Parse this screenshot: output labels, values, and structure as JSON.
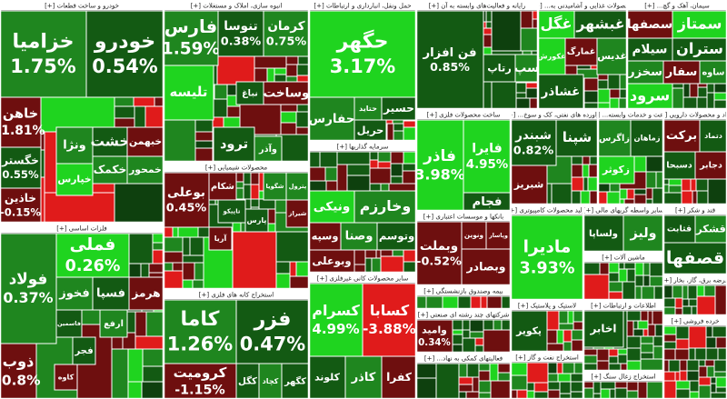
{
  "sectors": [
    {
      "title": "خودرو و ساخت قطعات [+]",
      "tiles": [
        {
          "name": "خزامیا",
          "change": "1.75%"
        },
        {
          "name": "خودرو",
          "change": "0.54%"
        },
        {
          "name": "خاهن",
          "change": "-1.81%"
        },
        {
          "name": "خگستر",
          "change": "0.55%"
        },
        {
          "name": "خاذین",
          "change": "-0.15%"
        },
        {
          "name": "ونژا"
        },
        {
          "name": "خشت"
        },
        {
          "name": "خبهمن"
        },
        {
          "name": "خمحور"
        },
        {
          "name": "خکمک"
        },
        {
          "name": "خپارس"
        }
      ]
    },
    {
      "title": "فلزات اساسی [+]",
      "tiles": [
        {
          "name": "فولاد",
          "change": "0.37%"
        },
        {
          "name": "فملی",
          "change": "0.26%"
        },
        {
          "name": "ذوب",
          "change": "-0.8%"
        },
        {
          "name": "فخوز"
        },
        {
          "name": "هرمز"
        },
        {
          "name": "فسپا"
        },
        {
          "name": "فاسمین"
        },
        {
          "name": "فجر"
        },
        {
          "name": "کاوه"
        },
        {
          "name": "ارفع"
        }
      ]
    },
    {
      "title": "انبوه سازی، املاک و مستغلات [+]",
      "tiles": [
        {
          "name": "فارس",
          "change": "1.59%"
        },
        {
          "name": "تنوسا",
          "change": "0.38%"
        },
        {
          "name": "کرمان",
          "change": "0.75%"
        },
        {
          "name": "وساخت"
        },
        {
          "name": "نباغ"
        },
        {
          "name": "تلیسه"
        },
        {
          "name": "ترود"
        },
        {
          "name": "وآذر"
        }
      ]
    },
    {
      "title": "محصولات شیمیایی [+]",
      "tiles": [
        {
          "name": "بوعلی",
          "change": "0.45%"
        },
        {
          "name": "شکام"
        },
        {
          "name": "شگویا"
        },
        {
          "name": "پترول"
        },
        {
          "name": "تاپیکو"
        },
        {
          "name": "پارس"
        },
        {
          "name": "آریا"
        },
        {
          "name": "شیراز"
        }
      ]
    },
    {
      "title": "استخراج کانه های فلزی [+]",
      "tiles": [
        {
          "name": "کاما",
          "change": "1.26%"
        },
        {
          "name": "فزر",
          "change": "0.47%"
        },
        {
          "name": "کرومیت",
          "change": "-1.15%"
        },
        {
          "name": "کگل"
        },
        {
          "name": "کچاد"
        },
        {
          "name": "کگهر"
        }
      ]
    },
    {
      "title": "حمل ونقل، انبارداری و ارتباطات [+]",
      "tiles": [
        {
          "name": "حگهر",
          "change": "3.17%"
        },
        {
          "name": "حسیر"
        },
        {
          "name": "حتاید"
        },
        {
          "name": "حفارس"
        },
        {
          "name": "حریل"
        }
      ]
    },
    {
      "title": "سرمایه گذاریها [+]",
      "tiles": [
        {
          "name": "وخارزم"
        },
        {
          "name": "ونیکی"
        },
        {
          "name": "وسپه"
        },
        {
          "name": "وصنا"
        },
        {
          "name": "وتوسم"
        },
        {
          "name": "وبوعلی"
        }
      ]
    },
    {
      "title": "سایر محصولات کانی غیرفلزی [+]",
      "tiles": [
        {
          "name": "کسرام",
          "change": "4.99%"
        },
        {
          "name": "کسابا",
          "change": "-3.88%"
        },
        {
          "name": "کلوند"
        },
        {
          "name": "کاذر"
        },
        {
          "name": "کفرا"
        }
      ]
    },
    {
      "title": "رایانه و فعالیت‌های وابسته به آن [+]",
      "tiles": [
        {
          "name": "فن افزار",
          "change": "0.85%"
        },
        {
          "name": "رتاپ"
        },
        {
          "name": "سپ"
        }
      ]
    },
    {
      "title": "ساخت محصولات فلزی [+]",
      "tiles": [
        {
          "name": "فاذر",
          "change": "3.98%"
        },
        {
          "name": "فایرا",
          "change": "4.95%"
        },
        {
          "name": "فجام"
        }
      ]
    },
    {
      "title": "بانکها و موسسات اعتباری [+]",
      "tiles": [
        {
          "name": "وبملت",
          "change": "-0.52%"
        },
        {
          "name": "ونوین"
        },
        {
          "name": "وپاسار"
        },
        {
          "name": "وبصادر"
        }
      ]
    },
    {
      "title": "بیمه وصندوق بازنشستگی [+]",
      "tiles": []
    },
    {
      "title": "شرکتهای چند رشته ای صنعتی [+]",
      "tiles": [
        {
          "name": "وامید",
          "change": "0.34%"
        }
      ]
    },
    {
      "title": "فعالیتهای کمکی به نهاد... [+]",
      "tiles": []
    },
    {
      "title": "فراورده های نفتی، کک و سوخ... [+]",
      "tiles": [
        {
          "name": "شبندر",
          "change": "0.82%"
        },
        {
          "name": "شپنا"
        },
        {
          "name": "شبریز"
        }
      ]
    },
    {
      "title": "محصولات غذایی و آشامیدنی به... [+]",
      "tiles": [
        {
          "name": "غگل"
        },
        {
          "name": "غبشهر"
        },
        {
          "name": "غکورش"
        },
        {
          "name": "غمارگ"
        },
        {
          "name": "غدیس"
        },
        {
          "name": "غشاذر"
        }
      ]
    },
    {
      "title": "سیمان، آهک و گچ... [+]",
      "tiles": [
        {
          "name": "سصفها"
        },
        {
          "name": "سمتاز"
        },
        {
          "name": "سیلام"
        },
        {
          "name": "ستران"
        },
        {
          "name": "سخزر"
        },
        {
          "name": "سفار"
        },
        {
          "name": "ساوه"
        },
        {
          "name": "سرود"
        }
      ]
    },
    {
      "title": "زراعت و خدمات وابسته... [+]",
      "tiles": [
        {
          "name": "زاگرس"
        },
        {
          "name": "زماهان"
        },
        {
          "name": "زکوثر"
        }
      ]
    },
    {
      "title": "مواد و محصولات دارویی [+]",
      "tiles": [
        {
          "name": "برکت"
        },
        {
          "name": "دتماد"
        },
        {
          "name": "دسبحا"
        },
        {
          "name": "دجابر"
        }
      ]
    },
    {
      "title": "تولید محصولات کامپیوتری [+]",
      "tiles": [
        {
          "name": "ماديرا",
          "change": "3.93%"
        }
      ]
    },
    {
      "title": "سایر واسطه گریهای مالی [+]",
      "tiles": [
        {
          "name": "ولساپا"
        },
        {
          "name": "ولیز"
        }
      ]
    },
    {
      "title": "قند و شکر [+]",
      "tiles": [
        {
          "name": "قثابت"
        },
        {
          "name": "قشکر"
        },
        {
          "name": "قصفها"
        }
      ]
    },
    {
      "title": "ماشین آلات [+]",
      "tiles": []
    },
    {
      "title": "عرضه برق، گاز، بخار [+]",
      "tiles": []
    },
    {
      "title": "لاستیک و پلاستیک [+]",
      "tiles": [
        {
          "name": "پکویر"
        }
      ]
    },
    {
      "title": "اطلاعات و ارتباطات [+]",
      "tiles": [
        {
          "name": "اخابر"
        }
      ]
    },
    {
      "title": "خرده فروشی [+]",
      "tiles": []
    },
    {
      "title": "استخراج نفت و گاز [+]",
      "tiles": []
    },
    {
      "title": "استخراج زغال سنگ [+]",
      "tiles": []
    }
  ]
}
